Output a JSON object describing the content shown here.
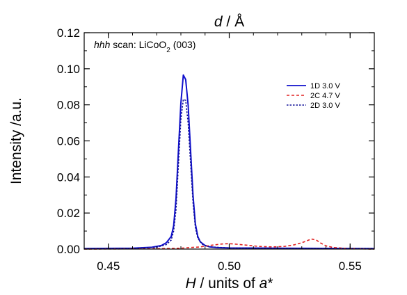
{
  "chart_data": {
    "type": "line",
    "title_top": "d / Å",
    "title_top_italic_part": "d",
    "title_top_rest": " / Å",
    "xlabel": "H / units of a*",
    "xlabel_parts": [
      "H",
      " / units of ",
      "a",
      "*"
    ],
    "ylabel": "Intensity /a.u.",
    "annotation": {
      "italic": "hhh",
      "text": " scan: LiCoO",
      "subscript": "2",
      "suffix": " (003)"
    },
    "xlim": [
      0.44,
      0.56
    ],
    "ylim": [
      0.0,
      0.12
    ],
    "x_ticks": [
      0.45,
      0.5,
      0.55
    ],
    "x_tick_labels": [
      "0.45",
      "0.50",
      "0.55"
    ],
    "y_ticks": [
      0.0,
      0.02,
      0.04,
      0.06,
      0.08,
      0.1,
      0.12
    ],
    "y_tick_labels": [
      "0.00",
      "0.02",
      "0.04",
      "0.06",
      "0.08",
      "0.10",
      "0.12"
    ],
    "legend_position": "upper-right",
    "series": [
      {
        "name": "1D 3.0 V",
        "color": "#1010cc",
        "dash": "solid",
        "x": [
          0.44,
          0.46,
          0.468,
          0.472,
          0.474,
          0.476,
          0.477,
          0.478,
          0.479,
          0.48,
          0.481,
          0.482,
          0.483,
          0.484,
          0.485,
          0.486,
          0.487,
          0.488,
          0.49,
          0.492,
          0.495,
          0.5,
          0.52,
          0.54,
          0.56
        ],
        "y": [
          0.0003,
          0.0005,
          0.001,
          0.002,
          0.0035,
          0.007,
          0.013,
          0.028,
          0.055,
          0.081,
          0.0965,
          0.094,
          0.08,
          0.055,
          0.03,
          0.014,
          0.007,
          0.004,
          0.002,
          0.0012,
          0.0008,
          0.0006,
          0.0005,
          0.0004,
          0.0003
        ]
      },
      {
        "name": "2C 4.7 V",
        "color": "#e02020",
        "dash": "dashed",
        "x": [
          0.44,
          0.47,
          0.48,
          0.488,
          0.493,
          0.497,
          0.5,
          0.503,
          0.507,
          0.512,
          0.518,
          0.523,
          0.527,
          0.53,
          0.532,
          0.534,
          0.536,
          0.538,
          0.54,
          0.543,
          0.548,
          0.555,
          0.56
        ],
        "y": [
          0.0,
          0.0002,
          0.0005,
          0.0012,
          0.0022,
          0.0028,
          0.003,
          0.0027,
          0.0022,
          0.0015,
          0.0012,
          0.0015,
          0.0024,
          0.0035,
          0.0045,
          0.0056,
          0.005,
          0.0032,
          0.0018,
          0.0009,
          0.0004,
          0.0001,
          0.0
        ]
      },
      {
        "name": "2D 3.0 V",
        "color": "#101099",
        "dash": "dotted",
        "x": [
          0.44,
          0.46,
          0.47,
          0.474,
          0.476,
          0.477,
          0.478,
          0.479,
          0.48,
          0.481,
          0.482,
          0.483,
          0.484,
          0.485,
          0.486,
          0.487,
          0.489,
          0.492,
          0.5,
          0.52,
          0.56
        ],
        "y": [
          0.0002,
          0.0004,
          0.001,
          0.0025,
          0.005,
          0.01,
          0.022,
          0.047,
          0.072,
          0.083,
          0.0825,
          0.07,
          0.048,
          0.026,
          0.012,
          0.006,
          0.0025,
          0.0012,
          0.0006,
          0.0004,
          0.0003
        ]
      }
    ]
  }
}
